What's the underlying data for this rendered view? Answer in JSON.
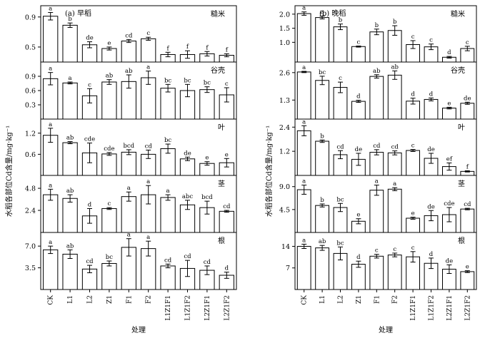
{
  "figure": {
    "xlabel": "处理",
    "ylabel": "水稻各部位Cd含量/mg·kg⁻¹"
  },
  "categories": [
    "CK",
    "L1",
    "L2",
    "Z1",
    "F1",
    "F2",
    "L1Z1F1",
    "L1Z1F2",
    "L2Z1F1",
    "L2Z1F2"
  ],
  "chart_data": [
    {
      "type": "bar",
      "panel": "a",
      "title": "(a) 早稻",
      "rows": [
        {
          "organ": "糙米",
          "ylim": [
            0.3,
            1.05
          ],
          "yticks": [
            0.5,
            0.9
          ],
          "values": [
            0.91,
            0.79,
            0.53,
            0.48,
            0.58,
            0.61,
            0.4,
            0.4,
            0.41,
            0.39
          ],
          "errors": [
            0.05,
            0.03,
            0.04,
            0.02,
            0.02,
            0.02,
            0.03,
            0.05,
            0.03,
            0.02
          ],
          "letters": [
            "a",
            "b",
            "de",
            "e",
            "cd",
            "c",
            "f",
            "f",
            "f",
            "f"
          ]
        },
        {
          "organ": "谷壳",
          "ylim": [
            0.0,
            1.2
          ],
          "yticks": [
            0.3,
            0.6,
            0.9
          ],
          "values": [
            0.85,
            0.76,
            0.49,
            0.78,
            0.79,
            0.87,
            0.65,
            0.6,
            0.62,
            0.51
          ],
          "errors": [
            0.13,
            0.02,
            0.15,
            0.05,
            0.14,
            0.14,
            0.08,
            0.13,
            0.06,
            0.15
          ],
          "letters": [
            "a",
            "a",
            "c",
            "ab",
            "ab",
            "a",
            "bc",
            "bc",
            "bc",
            "c"
          ]
        },
        {
          "organ": "叶",
          "ylim": [
            0.0,
            1.6
          ],
          "yticks": [
            0.6,
            1.2
          ],
          "values": [
            1.14,
            0.93,
            0.64,
            0.61,
            0.66,
            0.6,
            0.76,
            0.47,
            0.34,
            0.36
          ],
          "errors": [
            0.2,
            0.03,
            0.28,
            0.04,
            0.07,
            0.12,
            0.13,
            0.05,
            0.05,
            0.12
          ],
          "letters": [
            "a",
            "ab",
            "cde",
            "cde",
            "bcd",
            "cd",
            "bc",
            "de",
            "e",
            "e"
          ]
        },
        {
          "organ": "茎",
          "ylim": [
            0.0,
            6.2
          ],
          "yticks": [
            2.4,
            4.8
          ],
          "values": [
            4.1,
            3.7,
            1.8,
            2.6,
            3.9,
            4.1,
            3.8,
            3.0,
            2.7,
            2.3
          ],
          "errors": [
            0.6,
            0.4,
            0.8,
            0.1,
            0.5,
            1.0,
            0.3,
            0.5,
            0.7,
            0.1
          ],
          "letters": [
            "a",
            "ab",
            "d",
            "c",
            "a",
            "a",
            "a",
            "abc",
            "bcd",
            "cd"
          ]
        },
        {
          "organ": "根",
          "ylim": [
            0.0,
            9.2
          ],
          "yticks": [
            3.5,
            7.0
          ],
          "values": [
            6.4,
            5.7,
            3.3,
            4.2,
            6.8,
            6.6,
            3.8,
            3.4,
            3.1,
            2.3
          ],
          "errors": [
            0.6,
            0.7,
            0.6,
            0.4,
            1.4,
            1.2,
            0.3,
            1.3,
            0.7,
            0.5
          ],
          "letters": [
            "a",
            "ab",
            "cd",
            "bc",
            "a",
            "a",
            "cd",
            "cd",
            "cd",
            "d"
          ]
        }
      ]
    },
    {
      "type": "bar",
      "panel": "b",
      "title": "(b) 晚稻",
      "rows": [
        {
          "organ": "糙米",
          "ylim": [
            0.3,
            2.3
          ],
          "yticks": [
            1.0,
            1.5,
            2.0
          ],
          "values": [
            2.02,
            1.88,
            1.55,
            0.85,
            1.37,
            1.42,
            0.92,
            0.84,
            0.47,
            0.78
          ],
          "errors": [
            0.06,
            0.05,
            0.1,
            0.02,
            0.1,
            0.17,
            0.14,
            0.1,
            0.03,
            0.08
          ],
          "letters": [
            "a",
            "a",
            "b",
            "c",
            "b",
            "b",
            "c",
            "c",
            "d",
            "c"
          ]
        },
        {
          "organ": "谷壳",
          "ylim": [
            0.4,
            3.1
          ],
          "yticks": [
            1.3,
            2.6
          ],
          "values": [
            2.63,
            2.23,
            1.9,
            1.24,
            2.42,
            2.48,
            1.25,
            1.33,
            0.92,
            1.15
          ],
          "errors": [
            0.03,
            0.2,
            0.25,
            0.05,
            0.08,
            0.2,
            0.14,
            0.07,
            0.04,
            0.05
          ],
          "letters": [
            "a",
            "bc",
            "c",
            "d",
            "ab",
            "ab",
            "d",
            "d",
            "e",
            "de"
          ]
        },
        {
          "organ": "叶",
          "ylim": [
            0.0,
            2.8
          ],
          "yticks": [
            1.2,
            2.4
          ],
          "values": [
            2.22,
            1.7,
            1.03,
            0.8,
            1.15,
            1.12,
            1.24,
            0.85,
            0.44,
            0.2
          ],
          "errors": [
            0.25,
            0.06,
            0.2,
            0.3,
            0.13,
            0.1,
            0.05,
            0.25,
            0.18,
            0.03
          ],
          "letters": [
            "a",
            "b",
            "cd",
            "de",
            "cd",
            "cd",
            "c",
            "de",
            "ef",
            "f"
          ]
        },
        {
          "organ": "茎",
          "ylim": [
            0.0,
            11.2
          ],
          "yticks": [
            4.5,
            9.0
          ],
          "values": [
            8.4,
            5.3,
            4.9,
            2.2,
            8.3,
            8.5,
            2.8,
            3.3,
            3.5,
            4.6
          ],
          "errors": [
            0.9,
            0.3,
            0.8,
            0.5,
            1.0,
            0.3,
            0.2,
            1.0,
            1.4,
            0.15
          ],
          "letters": [
            "a",
            "b",
            "bc",
            "e",
            "a",
            "a",
            "e",
            "de",
            "cde",
            "cd"
          ]
        },
        {
          "organ": "根",
          "ylim": [
            0.0,
            18.5
          ],
          "yticks": [
            7,
            14
          ],
          "values": [
            14.0,
            13.5,
            11.7,
            8.2,
            10.8,
            11.2,
            10.6,
            8.5,
            6.6,
            5.8
          ],
          "errors": [
            0.7,
            0.8,
            2.1,
            1.0,
            0.6,
            0.6,
            1.7,
            1.7,
            1.4,
            0.3
          ],
          "letters": [
            "a",
            "ab",
            "bc",
            "d",
            "c",
            "c",
            "c",
            "d",
            "de",
            "e"
          ]
        }
      ]
    }
  ]
}
